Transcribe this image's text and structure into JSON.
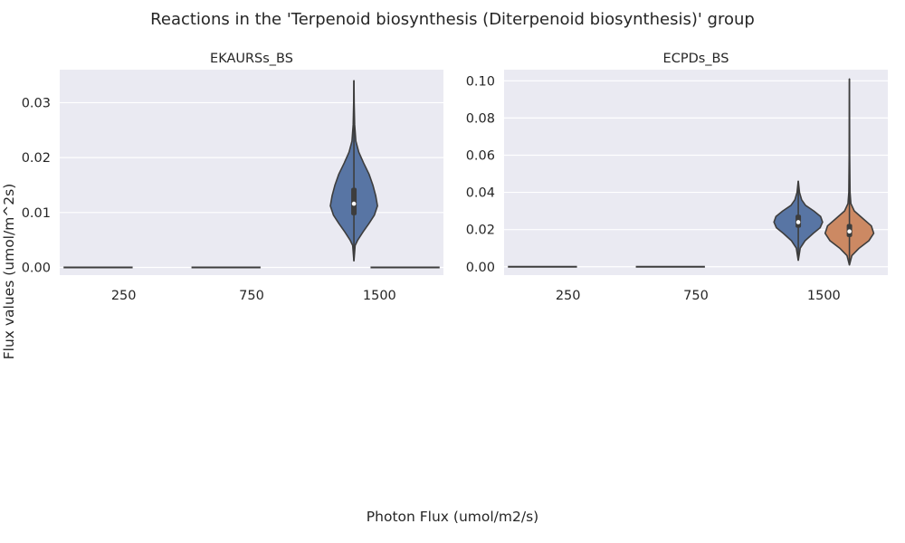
{
  "figure": {
    "title": "Reactions in the 'Terpenoid biosynthesis (Diterpenoid biosynthesis)' group",
    "xlabel": "Photon Flux (umol/m2/s)",
    "ylabel": "Flux values (umol/m^2s)"
  },
  "colors": {
    "background": "#eaeaf2",
    "grid": "#ffffff",
    "series_1": "#5875a4",
    "series_2": "#cc8963",
    "outline": "#3d3d3d"
  },
  "chart_data": [
    {
      "type": "violin",
      "title": "EKAURSs_BS",
      "categories": [
        "250",
        "750",
        "1500"
      ],
      "ylim": [
        -0.0014,
        0.036
      ],
      "yticks": [
        "0.00",
        "0.01",
        "0.02",
        "0.03"
      ],
      "ytick_values": [
        0,
        0.01,
        0.02,
        0.03
      ],
      "grid": true,
      "violins": [
        {
          "category": "250",
          "series": 1,
          "flat": true,
          "value": 0
        },
        {
          "category": "750",
          "series": 1,
          "flat": true,
          "value": 0
        },
        {
          "category": "1500",
          "series": 1,
          "flat": false,
          "min": 0.0012,
          "max": 0.034,
          "q1": 0.0095,
          "median": 0.0116,
          "q3": 0.0145,
          "profile": [
            [
              0.0012,
              0.002
            ],
            [
              0.004,
              0.05
            ],
            [
              0.005,
              0.16
            ],
            [
              0.0065,
              0.38
            ],
            [
              0.008,
              0.62
            ],
            [
              0.0095,
              0.84
            ],
            [
              0.0112,
              0.97
            ],
            [
              0.013,
              0.9
            ],
            [
              0.015,
              0.78
            ],
            [
              0.017,
              0.62
            ],
            [
              0.019,
              0.4
            ],
            [
              0.021,
              0.2
            ],
            [
              0.023,
              0.08
            ],
            [
              0.026,
              0.03
            ],
            [
              0.03,
              0.01
            ],
            [
              0.034,
              0.002
            ]
          ]
        },
        {
          "category": "1500",
          "series": 2,
          "flat": true,
          "value": 0
        }
      ]
    },
    {
      "type": "violin",
      "title": "ECPDs_BS",
      "categories": [
        "250",
        "750",
        "1500"
      ],
      "ylim": [
        -0.0045,
        0.106
      ],
      "yticks": [
        "0.00",
        "0.02",
        "0.04",
        "0.06",
        "0.08",
        "0.10"
      ],
      "ytick_values": [
        0,
        0.02,
        0.04,
        0.06,
        0.08,
        0.1
      ],
      "grid": true,
      "violins": [
        {
          "category": "250",
          "series": 1,
          "flat": true,
          "value": 0
        },
        {
          "category": "750",
          "series": 1,
          "flat": true,
          "value": 0
        },
        {
          "category": "1500",
          "series": 1,
          "flat": false,
          "min": 0.0035,
          "max": 0.046,
          "q1": 0.021,
          "median": 0.024,
          "q3": 0.028,
          "profile": [
            [
              0.0035,
              0.002
            ],
            [
              0.01,
              0.08
            ],
            [
              0.014,
              0.28
            ],
            [
              0.018,
              0.62
            ],
            [
              0.021,
              0.9
            ],
            [
              0.024,
              1.0
            ],
            [
              0.027,
              0.92
            ],
            [
              0.03,
              0.64
            ],
            [
              0.033,
              0.3
            ],
            [
              0.036,
              0.14
            ],
            [
              0.04,
              0.05
            ],
            [
              0.046,
              0.002
            ]
          ]
        },
        {
          "category": "1500",
          "series": 2,
          "flat": false,
          "min": 0.001,
          "max": 0.101,
          "q1": 0.016,
          "median": 0.019,
          "q3": 0.023,
          "profile": [
            [
              0.001,
              0.002
            ],
            [
              0.006,
              0.1
            ],
            [
              0.01,
              0.4
            ],
            [
              0.014,
              0.8
            ],
            [
              0.018,
              1.0
            ],
            [
              0.022,
              0.9
            ],
            [
              0.026,
              0.55
            ],
            [
              0.03,
              0.2
            ],
            [
              0.034,
              0.06
            ],
            [
              0.04,
              0.025
            ],
            [
              0.06,
              0.01
            ],
            [
              0.08,
              0.006
            ],
            [
              0.101,
              0.002
            ]
          ]
        }
      ]
    }
  ]
}
